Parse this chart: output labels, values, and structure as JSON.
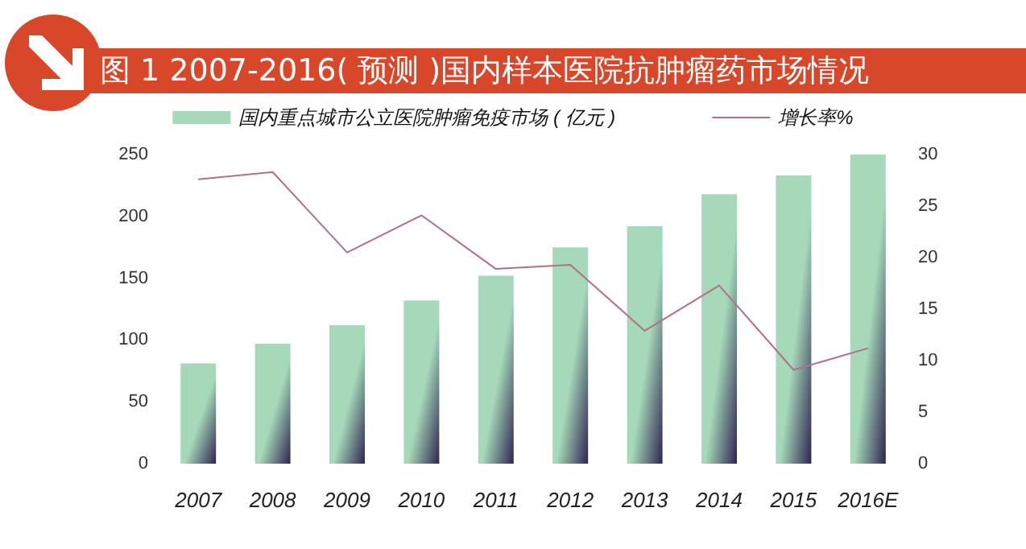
{
  "chart_data": {
    "type": "bar",
    "title": "图 1  2007-2016( 预测 )国内样本医院抗肿瘤药市场情况",
    "categories": [
      "2007",
      "2008",
      "2009",
      "2010",
      "2011",
      "2012",
      "2013",
      "2014",
      "2015",
      "2016E"
    ],
    "series": [
      {
        "name": "国内重点城市公立医院肿瘤免疫市场 ( 亿元 )",
        "color": "#a6d9b9",
        "values": [
          81,
          97,
          112,
          132,
          152,
          175,
          192,
          218,
          233,
          250
        ]
      },
      {
        "name": "增长率%",
        "type": "line",
        "axis": "y2",
        "color": "#b07284",
        "values": [
          27.6,
          28.3,
          20.5,
          24.1,
          18.9,
          19.3,
          12.9,
          17.3,
          9.1,
          11.2
        ]
      }
    ],
    "ylim": [
      0,
      250
    ],
    "yticks": [
      0,
      50,
      100,
      150,
      200,
      250
    ],
    "y2lim": [
      0,
      30
    ],
    "y2ticks": [
      0,
      5,
      10,
      15,
      20,
      25,
      30
    ],
    "legend": "top",
    "grid": false,
    "marker": "none"
  }
}
